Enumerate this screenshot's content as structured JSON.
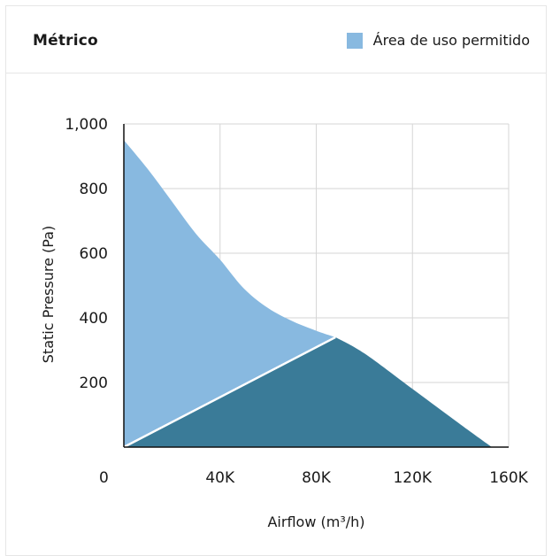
{
  "chart_data": {
    "type": "area",
    "title": "Métrico",
    "xlabel": "Airflow (m³/h)",
    "ylabel": "Static Pressure (Pa)",
    "x_ticks": [
      0,
      40000,
      80000,
      120000,
      160000
    ],
    "x_tick_labels": [
      "0",
      "40K",
      "80K",
      "120K",
      "160K"
    ],
    "y_ticks": [
      200,
      400,
      600,
      800,
      1000
    ],
    "y_tick_labels": [
      "200",
      "400",
      "600",
      "800",
      "1,000"
    ],
    "xlim": [
      0,
      160000
    ],
    "ylim": [
      0,
      1000
    ],
    "grid": true,
    "legend": {
      "position": "top-right",
      "label": "Área de uso permitido"
    },
    "series": [
      {
        "name": "Área de uso permitido",
        "color": "#88b9e0",
        "x": [
          0,
          10000,
          20000,
          30000,
          40000,
          50000,
          60000,
          70000,
          80000,
          88000
        ],
        "y": [
          950,
          860,
          760,
          660,
          580,
          490,
          430,
          390,
          360,
          340
        ]
      },
      {
        "color": "#3a7b98",
        "x": [
          0,
          88000,
          100000,
          120000,
          140000,
          153000
        ],
        "y": [
          0,
          340,
          290,
          180,
          70,
          0
        ]
      }
    ],
    "boundary_line": {
      "color": "#ffffff",
      "x": [
        0,
        88000
      ],
      "y": [
        0,
        340
      ]
    }
  },
  "colors": {
    "light_area": "#88b9e0",
    "dark_area": "#3a7b98",
    "grid": "#d6d6d6",
    "axis": "#111111"
  }
}
